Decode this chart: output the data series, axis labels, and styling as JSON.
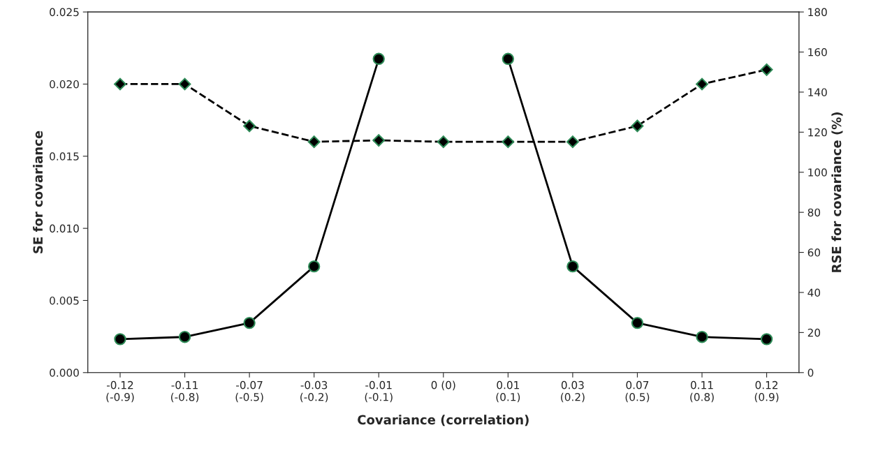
{
  "chart_data": {
    "type": "line",
    "xlabel": "Covariance (correlation)",
    "ylabel": "SE for covariance",
    "y2label": "RSE for covariance (%)",
    "categories": [
      "-0.12\n(-0.9)",
      "-0.11\n(-0.8)",
      "-0.07\n(-0.5)",
      "-0.03\n(-0.2)",
      "-0.01\n(-0.1)",
      "0 (0)",
      "0.01\n(0.1)",
      "0.03\n(0.2)",
      "0.07\n(0.5)",
      "0.11\n(0.8)",
      "0.12\n(0.9)"
    ],
    "series": [
      {
        "color": "#000000",
        "marker": "diamond",
        "line_style": "dashed",
        "values": [
          0.02,
          0.02,
          0.0171,
          0.016,
          0.0161,
          0.016,
          0.016,
          0.016,
          0.0171,
          0.02,
          0.021
        ]
      },
      {
        "color": "#000000",
        "marker": "circle",
        "line_style": "solid",
        "axis": "y2",
        "values": [
          16.7,
          17.8,
          24.8,
          53,
          156.6,
          null,
          156.6,
          53,
          24.8,
          17.8,
          16.7
        ]
      }
    ],
    "ylim": [
      0,
      0.025
    ],
    "yticks": [
      {
        "value": 0,
        "label": "0.000"
      },
      {
        "value": 0.005,
        "label": "0.005"
      },
      {
        "value": 0.01,
        "label": "0.010"
      },
      {
        "value": 0.015,
        "label": "0.015"
      },
      {
        "value": 0.02,
        "label": "0.020"
      },
      {
        "value": 0.025,
        "label": "0.025"
      }
    ],
    "y2lim": [
      0,
      180
    ],
    "y2ticks": [
      0,
      20,
      40,
      60,
      80,
      100,
      120,
      140,
      160,
      180
    ],
    "grid": false
  }
}
